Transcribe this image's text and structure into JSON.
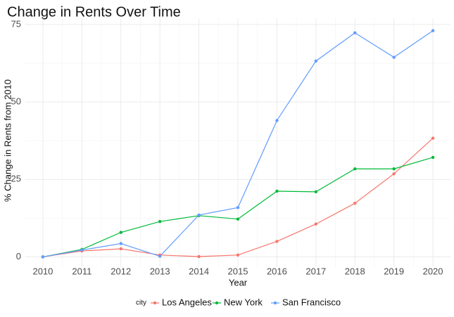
{
  "chart_data": {
    "type": "line",
    "title": "Change in Rents Over Time",
    "xlabel": "Year",
    "ylabel": "% Change in Rents from 2010",
    "x": [
      2010,
      2011,
      2012,
      2013,
      2014,
      2015,
      2016,
      2017,
      2018,
      2019,
      2020
    ],
    "xticks": [
      "2010",
      "2011",
      "2012",
      "2013",
      "2014",
      "2015",
      "2016",
      "2017",
      "2018",
      "2019",
      "2020"
    ],
    "yticks": [
      "0",
      "25",
      "50",
      "75"
    ],
    "yticks_values": [
      0,
      25,
      50,
      75
    ],
    "xlim": [
      2009.55,
      2020.45
    ],
    "ylim": [
      -3.3,
      77
    ],
    "grid": true,
    "legend_title": "city",
    "legend_position": "bottom",
    "series": [
      {
        "name": "Los Angeles",
        "color": "#F8766D",
        "values": [
          0,
          1.9,
          2.6,
          0.6,
          0.1,
          0.6,
          5.0,
          10.6,
          17.3,
          26.8,
          38.3
        ]
      },
      {
        "name": "New York",
        "color": "#00BA38",
        "values": [
          0,
          2.4,
          7.9,
          11.4,
          13.3,
          12.2,
          21.2,
          21.0,
          28.4,
          28.4,
          32.1
        ]
      },
      {
        "name": "San Francisco",
        "color": "#619CFF",
        "values": [
          0,
          2.2,
          4.3,
          0.2,
          13.5,
          15.9,
          44.0,
          63.2,
          72.3,
          64.4,
          73.0
        ]
      }
    ]
  }
}
